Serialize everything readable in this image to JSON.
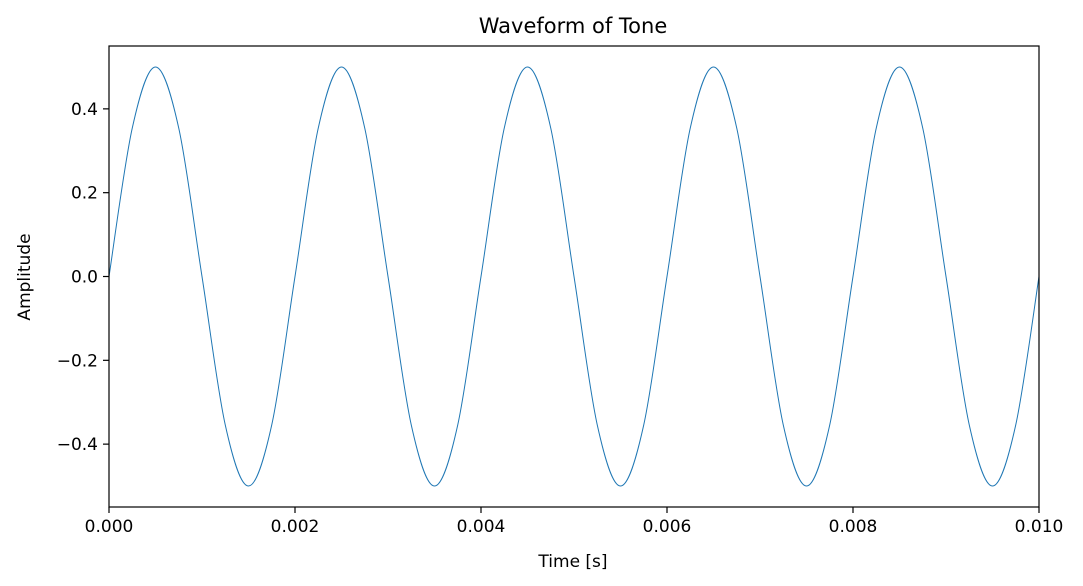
{
  "chart_data": {
    "type": "line",
    "title": "Waveform of Tone",
    "xlabel": "Time [s]",
    "ylabel": "Amplitude",
    "xlim": [
      0.0,
      0.01
    ],
    "ylim": [
      -0.55,
      0.55
    ],
    "xticks": [
      0.0,
      0.002,
      0.004,
      0.006,
      0.008,
      0.01
    ],
    "xtick_labels": [
      "0.000",
      "0.002",
      "0.004",
      "0.006",
      "0.008",
      "0.010"
    ],
    "yticks": [
      0.4,
      0.2,
      0.0,
      -0.2,
      -0.4
    ],
    "ytick_labels": [
      "0.4",
      "0.2",
      "0.0",
      "−0.2",
      "−0.4"
    ],
    "grid": false,
    "series": [
      {
        "color": "#1f77b4",
        "x": [
          0.0,
          0.00025,
          0.0005,
          0.00075,
          0.001,
          0.00125,
          0.0015,
          0.00175,
          0.002,
          0.00225,
          0.0025,
          0.00275,
          0.003,
          0.00325,
          0.0035,
          0.00375,
          0.004,
          0.00425,
          0.0045,
          0.00475,
          0.005,
          0.00525,
          0.0055,
          0.00575,
          0.006,
          0.00625,
          0.0065,
          0.00675,
          0.007,
          0.00725,
          0.0075,
          0.00775,
          0.008,
          0.00825,
          0.0085,
          0.00875,
          0.009,
          0.00925,
          0.0095,
          0.00975,
          0.01
        ],
        "y": [
          0.0,
          0.354,
          0.5,
          0.354,
          0.0,
          -0.354,
          -0.5,
          -0.354,
          0.0,
          0.354,
          0.5,
          0.354,
          0.0,
          -0.354,
          -0.5,
          -0.354,
          0.0,
          0.354,
          0.5,
          0.354,
          0.0,
          -0.354,
          -0.5,
          -0.354,
          0.0,
          0.354,
          0.5,
          0.354,
          0.0,
          -0.354,
          -0.5,
          -0.354,
          0.0,
          0.354,
          0.5,
          0.354,
          0.0,
          -0.354,
          -0.5,
          -0.354,
          0.0
        ]
      }
    ]
  }
}
